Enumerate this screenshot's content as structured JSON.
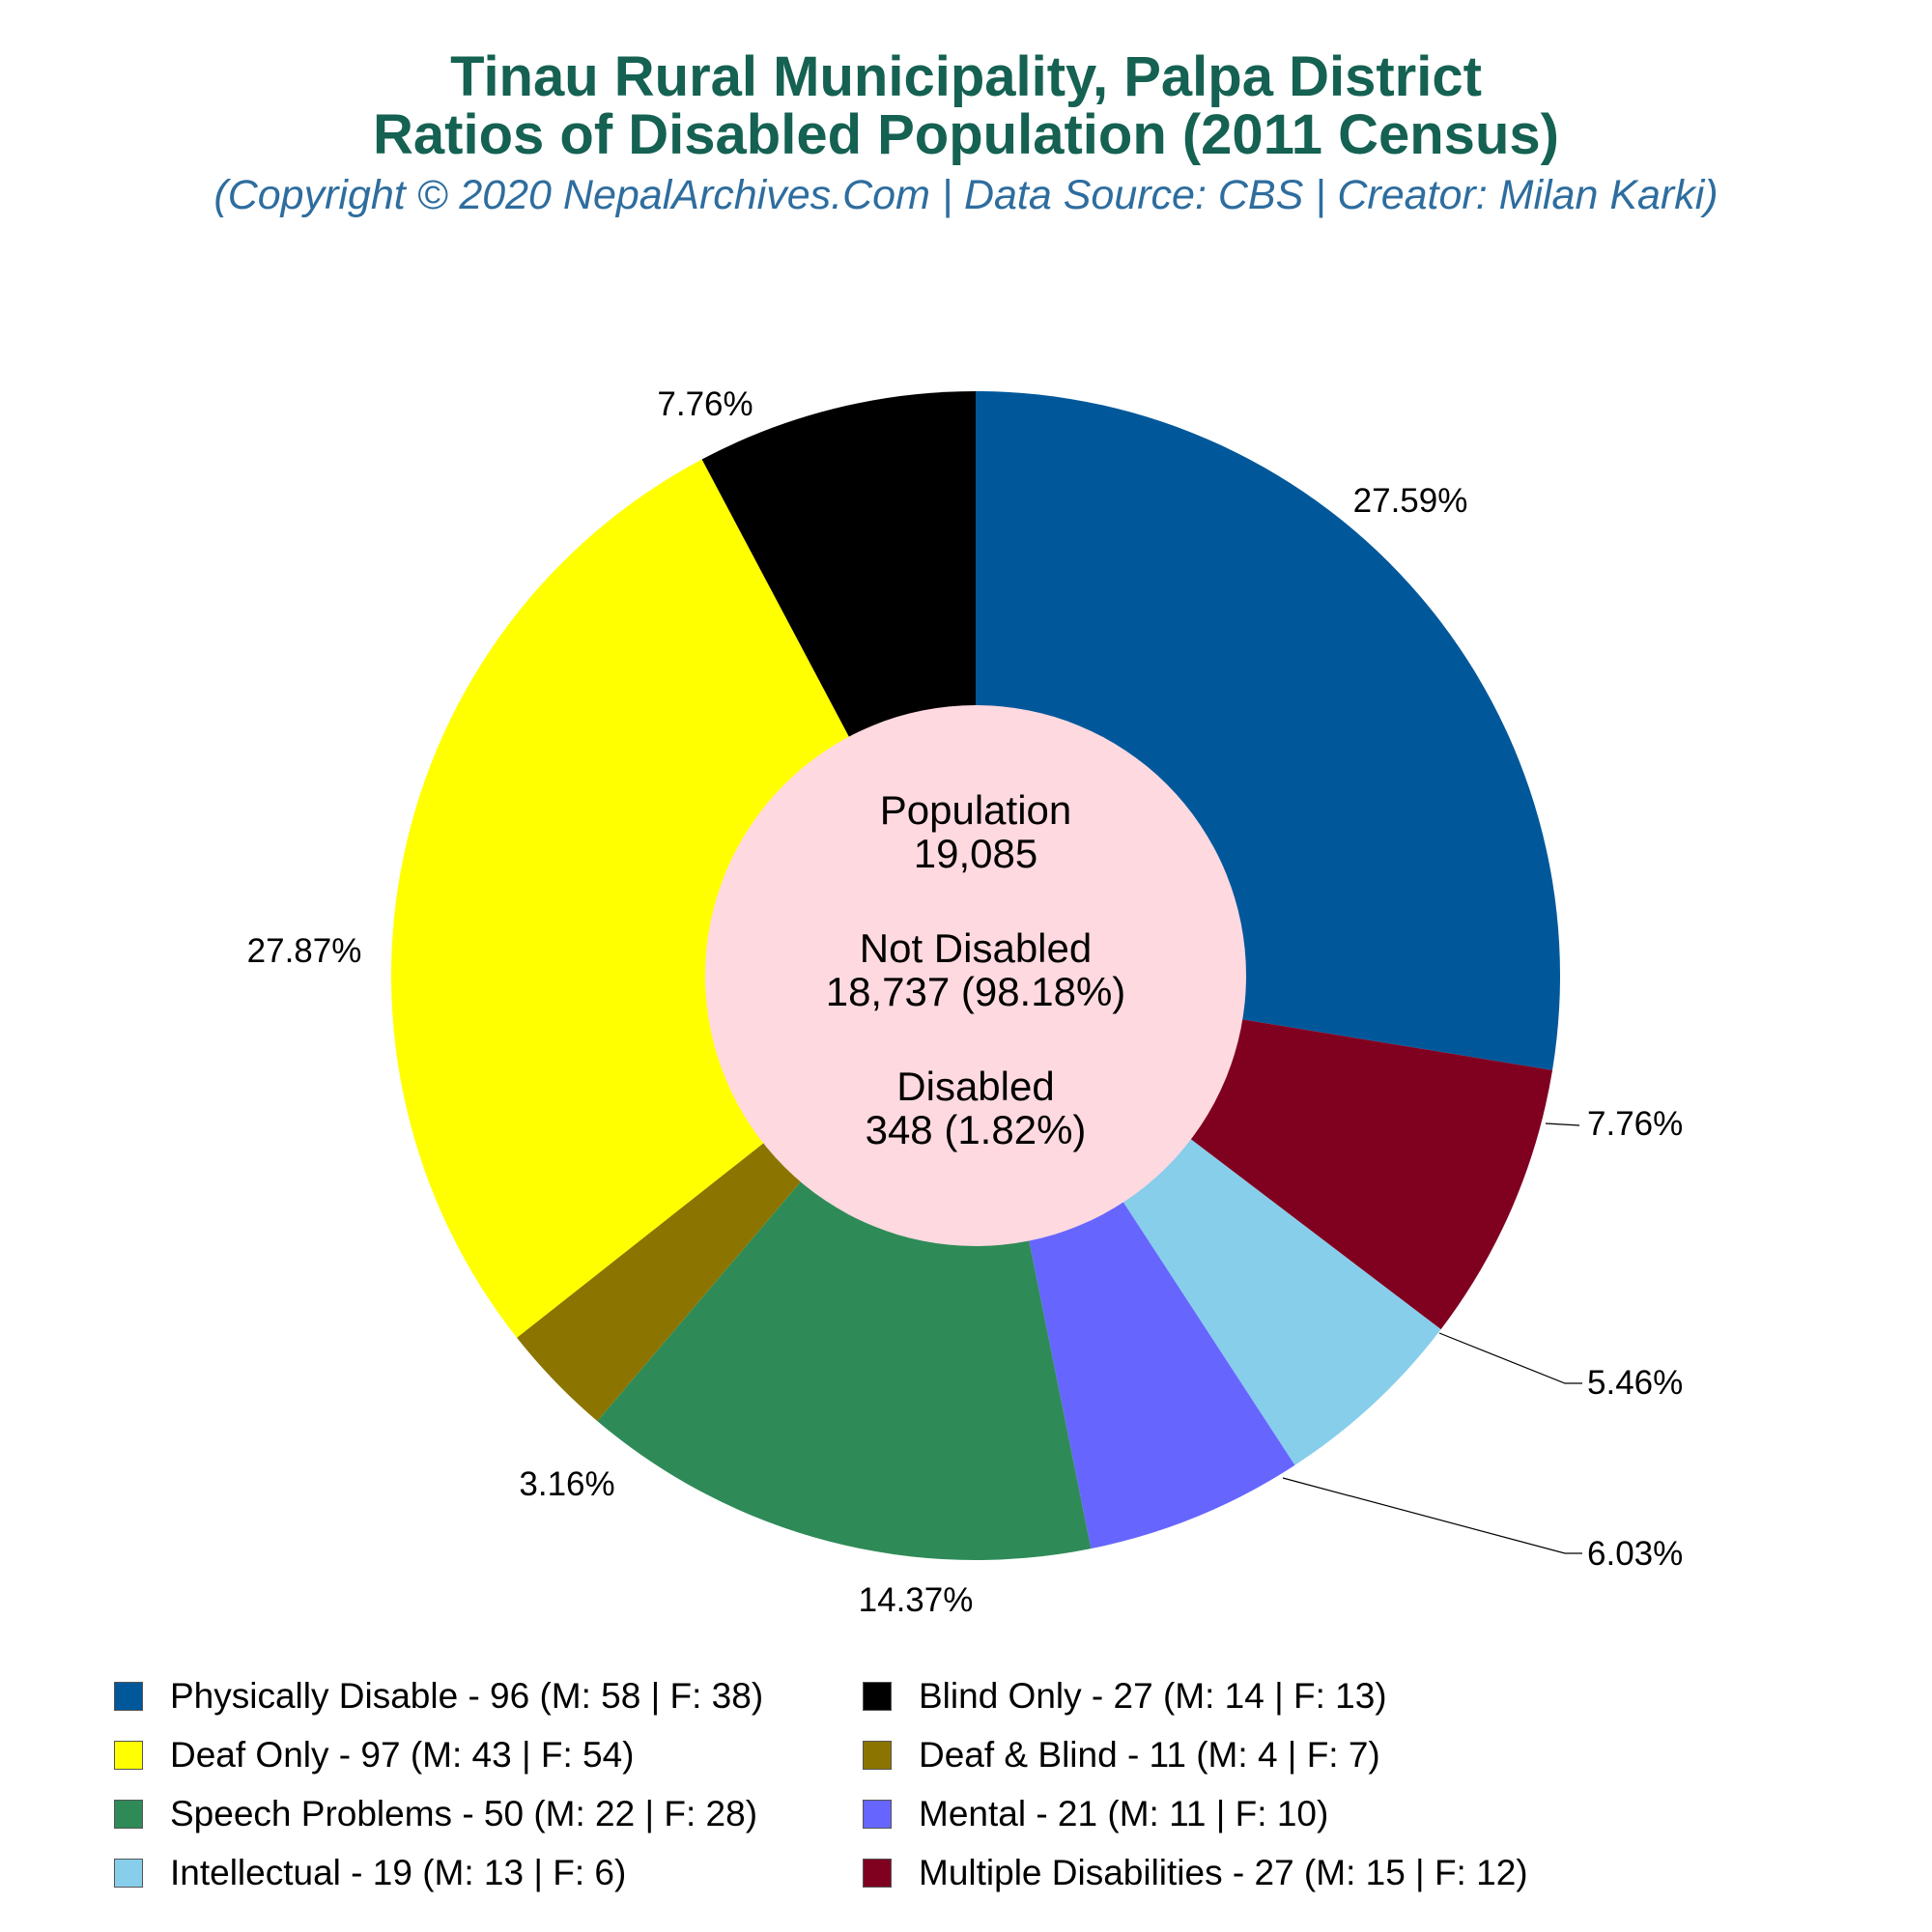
{
  "title": {
    "line1": "Tinau Rural Municipality, Palpa District",
    "line2": "Ratios of Disabled Population (2011 Census)",
    "subtitle": "(Copyright © 2020 NepalArchives.Com | Data Source: CBS | Creator: Milan Karki)"
  },
  "center": {
    "population_label": "Population",
    "population_value": "19,085",
    "not_disabled_label": "Not Disabled",
    "not_disabled_value": "18,737 (98.18%)",
    "disabled_label": "Disabled",
    "disabled_value": "348 (1.82%)"
  },
  "chart_data": {
    "type": "pie",
    "donut": true,
    "start_angle_deg": 90,
    "direction": "clockwise",
    "legend_position": "bottom",
    "slices": [
      {
        "legend": "Physically Disable - 96 (M: 58 | F: 38)",
        "value": 96,
        "percent_label": "27.59%",
        "color": "#00589b"
      },
      {
        "legend": "Multiple Disabilities - 27 (M: 15 | F: 12)",
        "value": 27,
        "percent_label": "7.76%",
        "color": "#800020"
      },
      {
        "legend": "Intellectual - 19 (M: 13 | F: 6)",
        "value": 19,
        "percent_label": "5.46%",
        "color": "#87ceeb"
      },
      {
        "legend": "Mental - 21 (M: 11 | F: 10)",
        "value": 21,
        "percent_label": "6.03%",
        "color": "#6666ff"
      },
      {
        "legend": "Speech Problems - 50 (M: 22 | F: 28)",
        "value": 50,
        "percent_label": "14.37%",
        "color": "#2e8b57"
      },
      {
        "legend": "Deaf & Blind - 11 (M: 4 | F: 7)",
        "value": 11,
        "percent_label": "3.16%",
        "color": "#8b7500"
      },
      {
        "legend": "Deaf Only - 97 (M: 43 | F: 54)",
        "value": 97,
        "percent_label": "27.87%",
        "color": "#ffff00"
      },
      {
        "legend": "Blind Only - 27 (M: 14 | F: 13)",
        "value": 27,
        "percent_label": "7.76%",
        "color": "#000000"
      }
    ],
    "legend_order": [
      "Physically Disable - 96 (M: 58 | F: 38)",
      "Blind Only - 27 (M: 14 | F: 13)",
      "Deaf Only - 97 (M: 43 | F: 54)",
      "Deaf & Blind - 11 (M: 4 | F: 7)",
      "Speech Problems - 50 (M: 22 | F: 28)",
      "Mental - 21 (M: 11 | F: 10)",
      "Intellectual - 19 (M: 13 | F: 6)",
      "Multiple Disabilities - 27 (M: 15 | F: 12)"
    ],
    "center_color": "#ffd9e0"
  }
}
